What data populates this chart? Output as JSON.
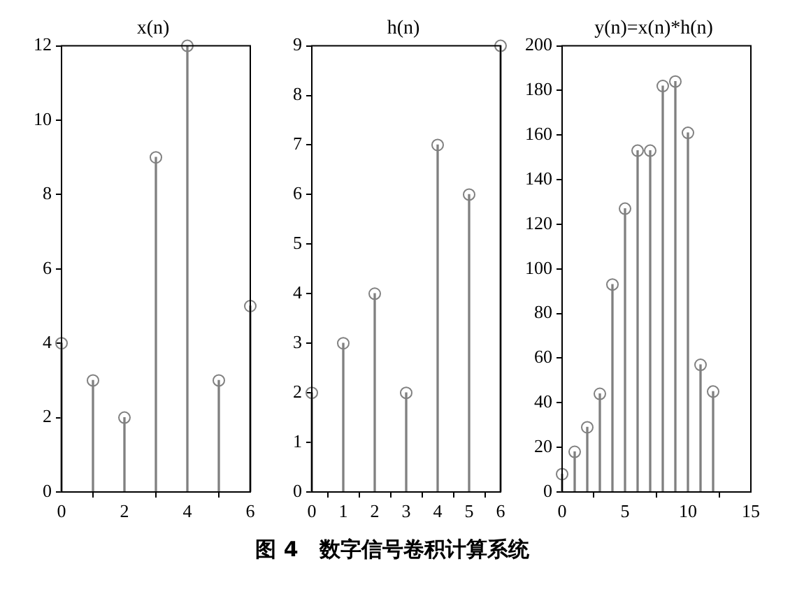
{
  "chart_data": [
    {
      "type": "lollipop",
      "title": "x(n)",
      "x": [
        0,
        1,
        2,
        3,
        4,
        5,
        6
      ],
      "values": [
        4,
        3,
        2,
        9,
        12,
        3,
        5
      ],
      "color": "#808080",
      "marker": "circle",
      "xlim": [
        0,
        6
      ],
      "xticks": [
        0,
        2,
        4,
        6
      ],
      "ylim": [
        0,
        12
      ],
      "yticks": [
        0,
        2,
        4,
        6,
        8,
        10,
        12
      ],
      "grid": false,
      "legend": false
    },
    {
      "type": "lollipop",
      "title": "h(n)",
      "x": [
        0,
        1,
        2,
        3,
        4,
        5,
        6
      ],
      "values": [
        2,
        3,
        4,
        2,
        7,
        6,
        9
      ],
      "color": "#808080",
      "marker": "circle",
      "xlim": [
        0,
        6
      ],
      "xticks": [
        0,
        1,
        2,
        3,
        4,
        5,
        6
      ],
      "ylim": [
        0,
        9
      ],
      "yticks": [
        0,
        1,
        2,
        3,
        4,
        5,
        6,
        7,
        8,
        9
      ],
      "grid": false,
      "legend": false,
      "annotations": [
        "图 4　数字信号卷积计算系统"
      ]
    },
    {
      "type": "lollipop",
      "title": "y(n)=x(n)*h(n)",
      "x": [
        0,
        1,
        2,
        3,
        4,
        5,
        6,
        7,
        8,
        9,
        10,
        11,
        12
      ],
      "values": [
        8,
        18,
        29,
        44,
        93,
        127,
        153,
        153,
        182,
        184,
        161,
        57,
        45
      ],
      "color": "#808080",
      "marker": "circle",
      "xlim": [
        0,
        15
      ],
      "xticks": [
        0,
        5,
        10,
        15
      ],
      "ylim": [
        0,
        200
      ],
      "yticks": [
        0,
        20,
        40,
        60,
        80,
        100,
        120,
        140,
        160,
        180,
        200
      ],
      "grid": false,
      "legend": false
    }
  ]
}
